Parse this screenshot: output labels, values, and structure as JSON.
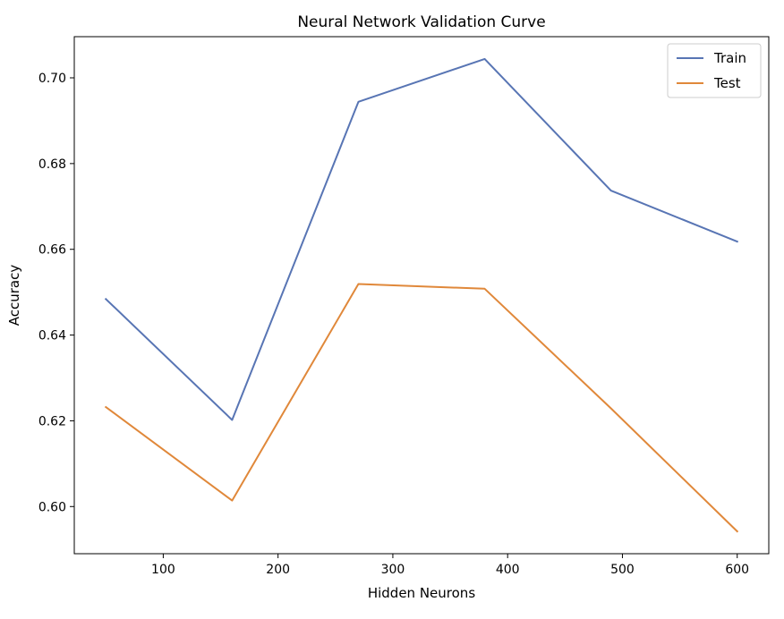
{
  "chart_data": {
    "type": "line",
    "title": "Neural Network Validation Curve",
    "xlabel": "Hidden Neurons",
    "ylabel": "Accuracy",
    "x": [
      50,
      160,
      270,
      380,
      490,
      600
    ],
    "series": [
      {
        "name": "Train",
        "color": "#5875b4",
        "values": [
          0.6484,
          0.6202,
          0.6944,
          0.7044,
          0.6737,
          0.6618
        ]
      },
      {
        "name": "Test",
        "color": "#e0883a",
        "values": [
          0.6232,
          0.6014,
          0.6519,
          0.6508,
          0.6229,
          0.5942
        ]
      }
    ],
    "xlim": [
      22.5,
      627.5
    ],
    "ylim": [
      0.589,
      0.7096
    ],
    "xticks": [
      100,
      200,
      300,
      400,
      500,
      600
    ],
    "yticks": [
      0.6,
      0.62,
      0.64,
      0.66,
      0.68,
      0.7
    ],
    "xtick_labels": [
      "100",
      "200",
      "300",
      "400",
      "500",
      "600"
    ],
    "ytick_labels": [
      "0.60",
      "0.62",
      "0.64",
      "0.66",
      "0.68",
      "0.70"
    ],
    "grid": false,
    "legend": "top-right"
  }
}
